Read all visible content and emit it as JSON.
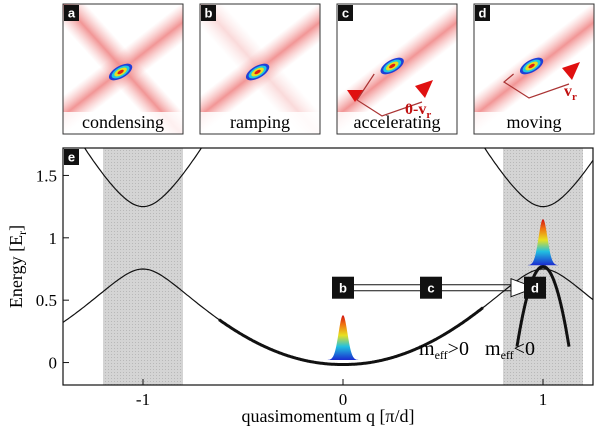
{
  "panels": [
    {
      "label": "a",
      "caption": "condensing"
    },
    {
      "label": "b",
      "caption": "ramping"
    },
    {
      "label": "c",
      "caption": "accelerating",
      "velocity": {
        "text": "0-v",
        "sub": "r"
      }
    },
    {
      "label": "d",
      "caption": "moving",
      "velocity": {
        "text": "v",
        "sub": "r"
      }
    }
  ],
  "plot": {
    "label": "e",
    "x_label": "quasimomentum q [π/d]",
    "y_label": {
      "text": "Energy [E",
      "sub": "r",
      "end": "]"
    },
    "xlim": [
      -1.4,
      1.25
    ],
    "ylim": [
      -0.18,
      1.72
    ],
    "xticks": [
      -1,
      0,
      1
    ],
    "yticks": [
      0,
      0.5,
      1,
      1.5
    ],
    "markers": [
      "b",
      "c",
      "d"
    ],
    "mass_labels": [
      {
        "text": "m",
        "sub": "eff",
        "rest": ">0"
      },
      {
        "text": "m",
        "sub": "eff",
        "rest": "<0"
      }
    ]
  }
}
